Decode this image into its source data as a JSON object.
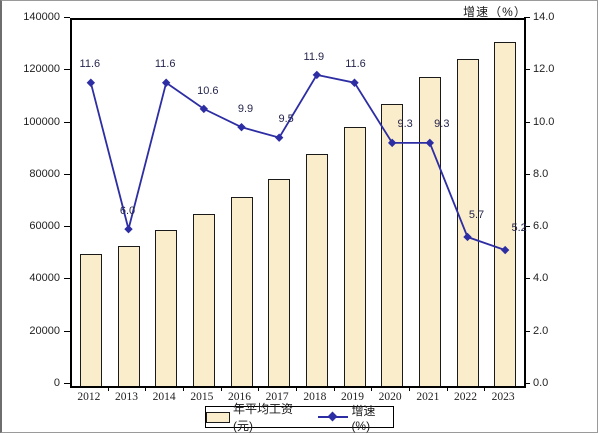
{
  "chart_data": {
    "type": "bar+line",
    "right_axis_title": "增速（%）",
    "categories": [
      "2012",
      "2013",
      "2014",
      "2015",
      "2016",
      "2017",
      "2018",
      "2019",
      "2020",
      "2021",
      "2022",
      "2023"
    ],
    "series": [
      {
        "name": "年平均工资(元)",
        "type": "bar",
        "axis": "left",
        "values": [
          50500,
          53500,
          59500,
          65800,
          72300,
          79200,
          88600,
          98900,
          108000,
          118100,
          124900,
          131400
        ]
      },
      {
        "name": "增速(%)",
        "type": "line",
        "axis": "right",
        "values": [
          11.6,
          6.0,
          11.6,
          10.6,
          9.9,
          9.5,
          11.9,
          11.6,
          9.3,
          9.3,
          5.7,
          5.2
        ],
        "point_labels": [
          "11.6",
          "6.0",
          "11.6",
          "10.6",
          "9.9",
          "9.5",
          "11.9",
          "11.6",
          "9.3",
          "9.3",
          "5.7",
          "5.2"
        ]
      }
    ],
    "left_axis": {
      "min": 0,
      "max": 140000,
      "step": 20000,
      "tick_labels": [
        "0",
        "20000",
        "40000",
        "60000",
        "80000",
        "100000",
        "120000",
        "140000"
      ]
    },
    "right_axis": {
      "min": 0,
      "max": 14,
      "step": 2,
      "tick_labels": [
        "0.0",
        "2.0",
        "4.0",
        "6.0",
        "8.0",
        "10.0",
        "12.0",
        "14.0"
      ]
    },
    "legend": {
      "items": [
        "年平均工资(元)",
        "增速(%)"
      ]
    },
    "colors": {
      "bar_fill": "#FAEDCB",
      "bar_border": "#1a1a1a",
      "line": "#2D2DA4",
      "plot_border": "#000000",
      "background": "#ffffff"
    },
    "grid": "off",
    "legend_position": "bottom-center"
  }
}
